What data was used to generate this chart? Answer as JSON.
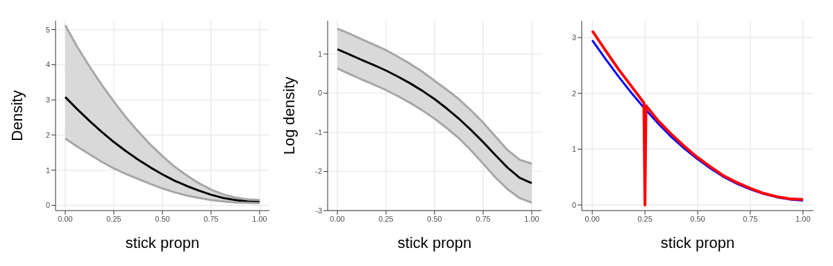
{
  "chart_data": [
    {
      "type": "line",
      "xlabel": "stick propn",
      "ylabel": "Density",
      "xlim": [
        -0.05,
        1.05
      ],
      "ylim": [
        -0.15,
        5.25
      ],
      "xticks": [
        {
          "value": 0,
          "label": "0.00"
        },
        {
          "value": 0.25,
          "label": "0.25"
        },
        {
          "value": 0.5,
          "label": "0.50"
        },
        {
          "value": 0.75,
          "label": "0.75"
        },
        {
          "value": 1,
          "label": "1.00"
        }
      ],
      "yticks": [
        0,
        1,
        2,
        3,
        4,
        5
      ],
      "grid": true,
      "legend": false,
      "series": [
        {
          "color": "#000000",
          "x": [
            0,
            0.0625,
            0.125,
            0.1875,
            0.25,
            0.3125,
            0.375,
            0.4375,
            0.5,
            0.5625,
            0.625,
            0.6875,
            0.75,
            0.8125,
            0.875,
            0.9375,
            1
          ],
          "values": [
            3.08,
            2.73,
            2.4,
            2.09,
            1.8,
            1.54,
            1.3,
            1.08,
            0.88,
            0.7,
            0.55,
            0.42,
            0.3,
            0.21,
            0.15,
            0.11,
            0.1
          ],
          "lower": [
            1.9,
            1.67,
            1.45,
            1.24,
            1.05,
            0.89,
            0.75,
            0.61,
            0.48,
            0.37,
            0.28,
            0.21,
            0.15,
            0.11,
            0.08,
            0.07,
            0.06
          ],
          "upper": [
            5.12,
            4.5,
            3.95,
            3.43,
            2.95,
            2.5,
            2.1,
            1.73,
            1.4,
            1.1,
            0.85,
            0.63,
            0.45,
            0.31,
            0.22,
            0.17,
            0.15
          ]
        },
        {
          "color": "#a6a6a6",
          "x": [
            0,
            0.0625,
            0.125,
            0.1875,
            0.25,
            0.3125,
            0.375,
            0.4375,
            0.5,
            0.5625,
            0.625,
            0.6875,
            0.75,
            0.8125,
            0.875,
            0.9375,
            1
          ],
          "values": [
            1.9,
            1.67,
            1.45,
            1.24,
            1.05,
            0.89,
            0.75,
            0.61,
            0.48,
            0.37,
            0.28,
            0.21,
            0.15,
            0.11,
            0.08,
            0.07,
            0.06
          ]
        },
        {
          "color": "#a6a6a6",
          "x": [
            0,
            0.0625,
            0.125,
            0.1875,
            0.25,
            0.3125,
            0.375,
            0.4375,
            0.5,
            0.5625,
            0.625,
            0.6875,
            0.75,
            0.8125,
            0.875,
            0.9375,
            1
          ],
          "values": [
            5.12,
            4.5,
            3.95,
            3.43,
            2.95,
            2.5,
            2.1,
            1.73,
            1.4,
            1.1,
            0.85,
            0.63,
            0.45,
            0.31,
            0.22,
            0.17,
            0.15
          ]
        }
      ]
    },
    {
      "type": "line",
      "xlabel": "stick propn",
      "ylabel": "Log density",
      "xlim": [
        -0.05,
        1.05
      ],
      "ylim": [
        -3,
        1.85
      ],
      "xticks": [
        {
          "value": 0,
          "label": "0.00"
        },
        {
          "value": 0.25,
          "label": "0.25"
        },
        {
          "value": 0.5,
          "label": "0.50"
        },
        {
          "value": 0.75,
          "label": "0.75"
        },
        {
          "value": 1,
          "label": "1.00"
        }
      ],
      "yticks": [
        -3,
        -2,
        -1,
        0,
        1
      ],
      "grid": true,
      "legend": false,
      "series": [
        {
          "color": "#000000",
          "x": [
            0,
            0.0625,
            0.125,
            0.1875,
            0.25,
            0.3125,
            0.375,
            0.4375,
            0.5,
            0.5625,
            0.625,
            0.6875,
            0.75,
            0.8125,
            0.875,
            0.9375,
            1
          ],
          "values": [
            1.12,
            0.99,
            0.85,
            0.72,
            0.58,
            0.42,
            0.25,
            0.06,
            -0.15,
            -0.39,
            -0.65,
            -0.94,
            -1.25,
            -1.58,
            -1.9,
            -2.16,
            -2.3
          ],
          "lower": [
            0.63,
            0.49,
            0.35,
            0.22,
            0.08,
            -0.08,
            -0.25,
            -0.44,
            -0.65,
            -0.89,
            -1.15,
            -1.46,
            -1.8,
            -2.15,
            -2.45,
            -2.68,
            -2.8
          ],
          "upper": [
            1.65,
            1.52,
            1.38,
            1.24,
            1.1,
            0.93,
            0.75,
            0.55,
            0.32,
            0.09,
            -0.15,
            -0.44,
            -0.75,
            -1.1,
            -1.45,
            -1.7,
            -1.8
          ]
        },
        {
          "color": "#a6a6a6",
          "x": [
            0,
            0.0625,
            0.125,
            0.1875,
            0.25,
            0.3125,
            0.375,
            0.4375,
            0.5,
            0.5625,
            0.625,
            0.6875,
            0.75,
            0.8125,
            0.875,
            0.9375,
            1
          ],
          "values": [
            0.63,
            0.49,
            0.35,
            0.22,
            0.08,
            -0.08,
            -0.25,
            -0.44,
            -0.65,
            -0.89,
            -1.15,
            -1.46,
            -1.8,
            -2.15,
            -2.45,
            -2.68,
            -2.8
          ]
        },
        {
          "color": "#a6a6a6",
          "x": [
            0,
            0.0625,
            0.125,
            0.1875,
            0.25,
            0.3125,
            0.375,
            0.4375,
            0.5,
            0.5625,
            0.625,
            0.6875,
            0.75,
            0.8125,
            0.875,
            0.9375,
            1
          ],
          "values": [
            1.65,
            1.52,
            1.38,
            1.24,
            1.1,
            0.93,
            0.75,
            0.55,
            0.32,
            0.09,
            -0.15,
            -0.44,
            -0.75,
            -1.1,
            -1.45,
            -1.7,
            -1.8
          ]
        }
      ]
    },
    {
      "type": "line",
      "xlabel": "stick propn",
      "xlim": [
        -0.05,
        1.05
      ],
      "ylim": [
        -0.1,
        3.3
      ],
      "xticks": [
        {
          "value": 0,
          "label": "0.00"
        },
        {
          "value": 0.25,
          "label": "0.25"
        },
        {
          "value": 0.5,
          "label": "0.50"
        },
        {
          "value": 0.75,
          "label": "0.75"
        },
        {
          "value": 1,
          "label": "1.00"
        }
      ],
      "yticks": [
        0,
        1,
        2,
        3
      ],
      "grid": true,
      "legend": false,
      "series": [
        {
          "color": "#0000ff",
          "x": [
            0,
            0.0625,
            0.125,
            0.1875,
            0.25,
            0.3125,
            0.375,
            0.4375,
            0.5,
            0.5625,
            0.625,
            0.6875,
            0.75,
            0.8125,
            0.875,
            0.9375,
            1
          ],
          "values": [
            2.95,
            2.62,
            2.3,
            2.0,
            1.72,
            1.46,
            1.22,
            1.01,
            0.82,
            0.65,
            0.5,
            0.38,
            0.28,
            0.2,
            0.14,
            0.1,
            0.08
          ]
        },
        {
          "color": "#ff0000",
          "x": [
            0,
            0.0625,
            0.125,
            0.1875,
            0.245,
            0.25,
            0.255,
            0.3125,
            0.375,
            0.4375,
            0.5,
            0.5625,
            0.625,
            0.6875,
            0.75,
            0.8125,
            0.875,
            0.9375,
            1
          ],
          "values": [
            3.12,
            2.77,
            2.43,
            2.12,
            1.83,
            0,
            1.78,
            1.51,
            1.27,
            1.05,
            0.85,
            0.68,
            0.52,
            0.4,
            0.3,
            0.21,
            0.15,
            0.11,
            0.1
          ]
        }
      ]
    }
  ]
}
